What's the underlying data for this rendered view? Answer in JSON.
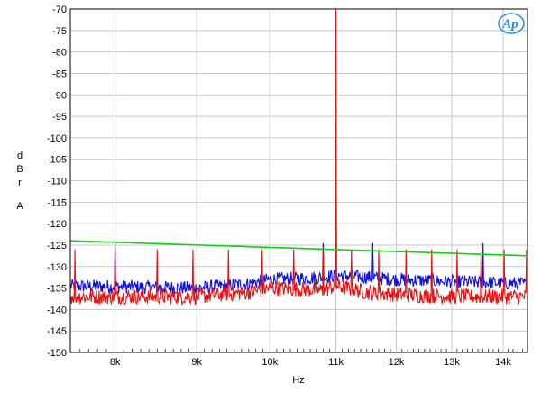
{
  "chart_data": {
    "type": "line",
    "x_scale": "log",
    "xlim": [
      7500,
      14500
    ],
    "ylim": [
      -150,
      -70
    ],
    "grid": true,
    "xlabel": "Hz",
    "ylabel_letters": [
      "d",
      "B",
      "r",
      "",
      "A"
    ],
    "x_ticks": [
      {
        "value": 8000,
        "label": "8k"
      },
      {
        "value": 9000,
        "label": "9k"
      },
      {
        "value": 10000,
        "label": "10k"
      },
      {
        "value": 11000,
        "label": "11k"
      },
      {
        "value": 12000,
        "label": "12k"
      },
      {
        "value": 13000,
        "label": "13k"
      },
      {
        "value": 14000,
        "label": "14k"
      }
    ],
    "y_ticks": [
      -70,
      -75,
      -80,
      -85,
      -90,
      -95,
      -100,
      -105,
      -110,
      -115,
      -120,
      -125,
      -130,
      -135,
      -140,
      -145,
      -150
    ],
    "logo_text": "AP",
    "fundamental_hz": 11000,
    "fundamental_top_db": -70,
    "series": [
      {
        "color": "#1010e0",
        "noise_floor_db": [
          [
            7500,
            -134.5
          ],
          [
            9000,
            -135
          ],
          [
            9700,
            -134
          ],
          [
            10000,
            -133
          ],
          [
            10800,
            -132.5
          ],
          [
            11000,
            -132
          ],
          [
            11500,
            -132.5
          ],
          [
            12000,
            -133
          ],
          [
            13000,
            -133.5
          ],
          [
            14500,
            -134
          ]
        ],
        "tones_hz": [
          8000,
          10800,
          11600,
          13600
        ]
      },
      {
        "color": "#e81010",
        "noise_floor_db": [
          [
            7500,
            -137
          ],
          [
            9000,
            -137
          ],
          [
            9700,
            -136
          ],
          [
            10000,
            -135
          ],
          [
            10800,
            -135.5
          ],
          [
            11000,
            -134.5
          ],
          [
            11500,
            -136
          ],
          [
            12000,
            -136.5
          ],
          [
            13000,
            -137
          ],
          [
            14500,
            -137
          ]
        ],
        "spurs": [
          [
            7550,
            -126
          ],
          [
            8000,
            -126
          ],
          [
            8500,
            -126
          ],
          [
            8950,
            -126
          ],
          [
            9420,
            -126
          ],
          [
            9890,
            -126
          ],
          [
            10350,
            -126
          ],
          [
            10800,
            -126
          ],
          [
            11250,
            -126
          ],
          [
            11700,
            -126
          ],
          [
            12170,
            -126
          ],
          [
            12630,
            -126
          ],
          [
            13100,
            -126
          ],
          [
            13560,
            -126
          ],
          [
            14020,
            -126
          ],
          [
            14480,
            -126
          ]
        ]
      },
      {
        "color": "#10d010",
        "points": [
          [
            7500,
            -124
          ],
          [
            14500,
            -127.5
          ]
        ]
      }
    ]
  }
}
